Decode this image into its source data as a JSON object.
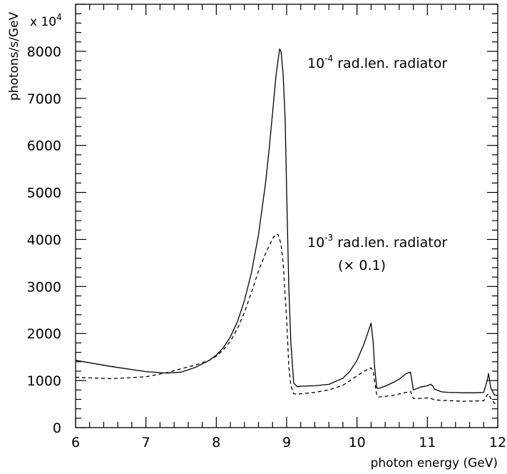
{
  "chart_data": {
    "type": "line",
    "xlabel": "photon energy (GeV)",
    "ylabel": "photons/s/GeV",
    "y_multiplier": "x 10",
    "y_multiplier_exp": "4",
    "xlim": [
      6,
      12
    ],
    "ylim": [
      0,
      9000
    ],
    "x_ticks": [
      6,
      7,
      8,
      9,
      10,
      11,
      12
    ],
    "x_tick_labels": [
      "6",
      "7",
      "8",
      "9",
      "10",
      "11",
      "12"
    ],
    "y_ticks": [
      0,
      1000,
      2000,
      3000,
      4000,
      5000,
      6000,
      7000,
      8000
    ],
    "y_tick_labels": [
      "0",
      "1000",
      "2000",
      "3000",
      "4000",
      "5000",
      "6000",
      "7000",
      "8000"
    ],
    "grid": false,
    "series": [
      {
        "style": "solid",
        "x": [
          6.0,
          6.5,
          7.0,
          7.3,
          7.5,
          7.7,
          7.9,
          8.0,
          8.1,
          8.2,
          8.3,
          8.4,
          8.5,
          8.6,
          8.7,
          8.75,
          8.8,
          8.85,
          8.9,
          8.92,
          8.95,
          8.98,
          9.0,
          9.03,
          9.06,
          9.1,
          9.15,
          9.2,
          9.4,
          9.6,
          9.8,
          9.9,
          10.0,
          10.1,
          10.15,
          10.2,
          10.23,
          10.25,
          10.28,
          10.3,
          10.4,
          10.5,
          10.6,
          10.7,
          10.76,
          10.78,
          10.8,
          10.85,
          10.9,
          11.0,
          11.05,
          11.08,
          11.1,
          11.15,
          11.2,
          11.3,
          11.5,
          11.7,
          11.8,
          11.85,
          11.87,
          11.9,
          11.95,
          12.0
        ],
        "y": [
          1430,
          1300,
          1190,
          1160,
          1180,
          1280,
          1430,
          1540,
          1700,
          1930,
          2250,
          2700,
          3300,
          4100,
          5200,
          5900,
          6700,
          7500,
          8050,
          8000,
          7500,
          6500,
          5000,
          3000,
          1800,
          950,
          870,
          880,
          890,
          920,
          1050,
          1200,
          1430,
          1780,
          2000,
          2220,
          1800,
          1300,
          850,
          830,
          880,
          950,
          1030,
          1150,
          1180,
          1000,
          800,
          830,
          860,
          890,
          920,
          880,
          820,
          790,
          760,
          750,
          740,
          740,
          750,
          1000,
          1150,
          850,
          700,
          680
        ]
      },
      {
        "style": "dashed",
        "x": [
          6.0,
          6.5,
          7.0,
          7.3,
          7.5,
          7.7,
          7.9,
          8.0,
          8.1,
          8.2,
          8.3,
          8.4,
          8.5,
          8.6,
          8.7,
          8.8,
          8.85,
          8.88,
          8.92,
          8.95,
          9.0,
          9.03,
          9.06,
          9.1,
          9.15,
          9.2,
          9.4,
          9.6,
          9.8,
          9.9,
          10.0,
          10.1,
          10.2,
          10.23,
          10.25,
          10.28,
          10.3,
          10.5,
          10.7,
          10.76,
          10.78,
          10.8,
          10.9,
          11.0,
          11.05,
          11.1,
          11.2,
          11.5,
          11.8,
          11.85,
          11.87,
          11.9,
          11.95,
          12.0
        ],
        "y": [
          1070,
          1040,
          1080,
          1170,
          1250,
          1330,
          1430,
          1520,
          1650,
          1840,
          2100,
          2450,
          2880,
          3330,
          3700,
          4020,
          4120,
          4100,
          3900,
          3500,
          2300,
          1300,
          900,
          720,
          710,
          720,
          750,
          800,
          900,
          1000,
          1100,
          1200,
          1270,
          1200,
          1000,
          700,
          650,
          680,
          750,
          770,
          700,
          620,
          620,
          630,
          620,
          590,
          580,
          560,
          570,
          700,
          720,
          620,
          520,
          500
        ]
      }
    ],
    "annotations": [
      {
        "pre": "10",
        "exp": "-4",
        "post": " rad.len. radiator"
      },
      {
        "pre": "10",
        "exp": "-3",
        "post": " rad.len. radiator"
      },
      {
        "text": "(× 0.1)"
      }
    ]
  }
}
